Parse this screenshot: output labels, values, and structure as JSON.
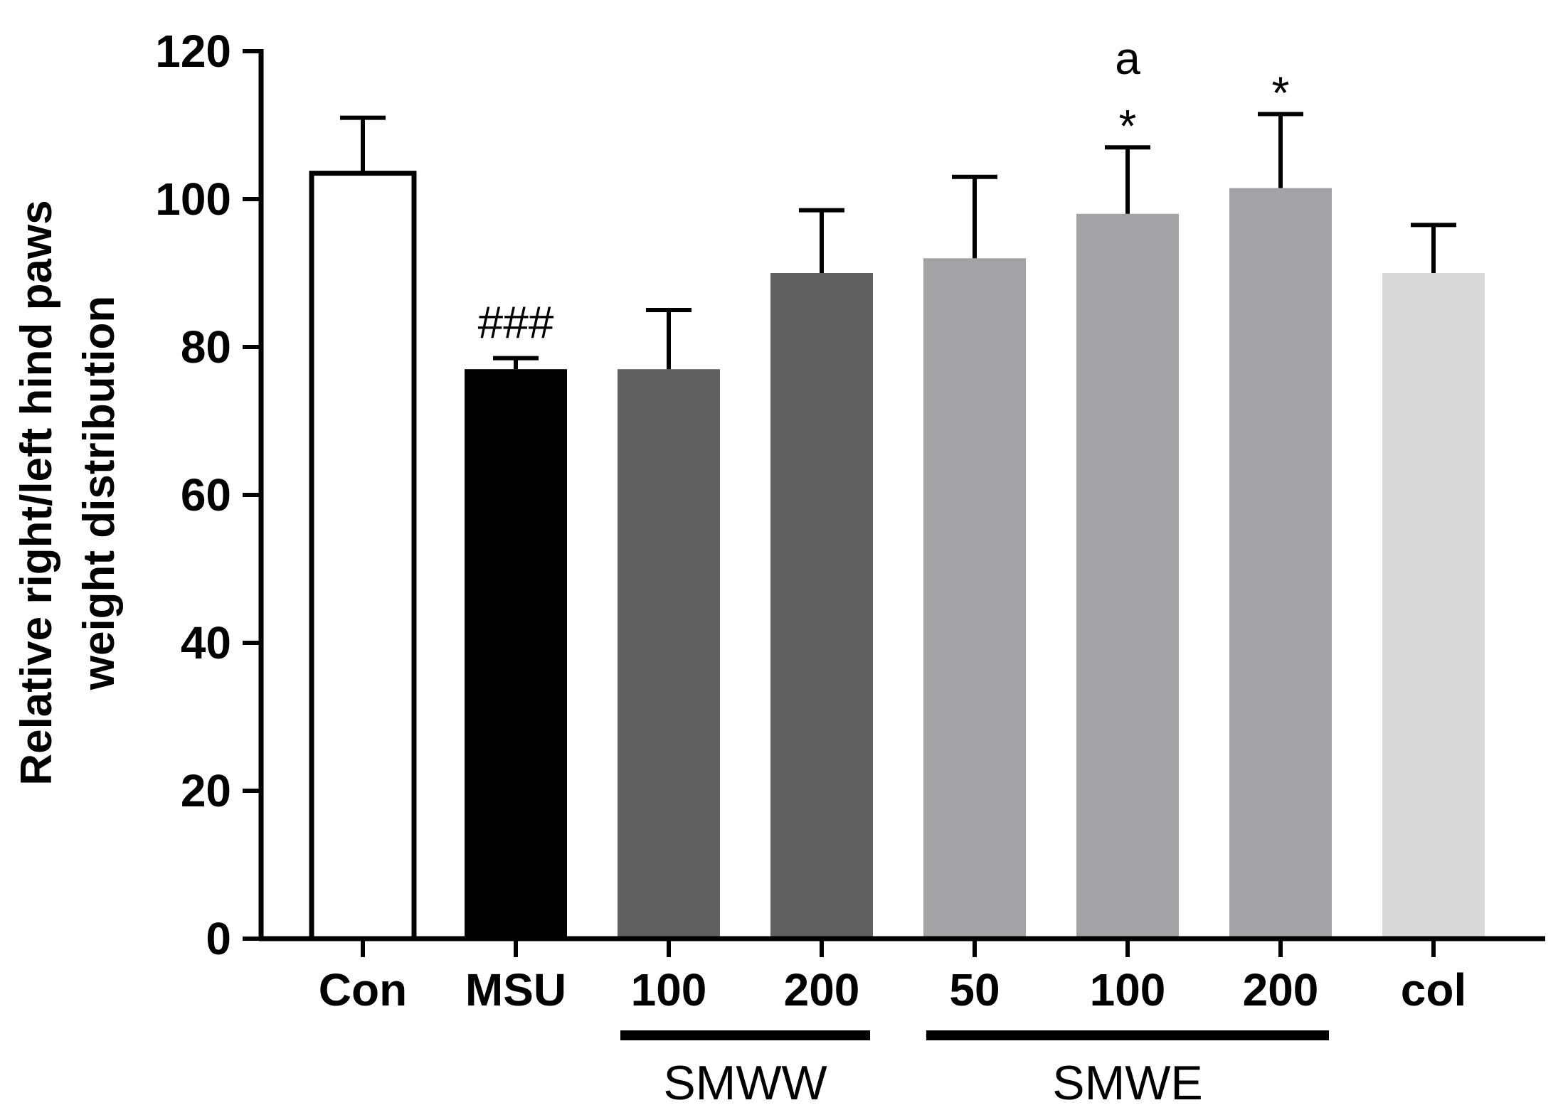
{
  "chart_data": {
    "type": "bar",
    "title": "",
    "xlabel": "",
    "ylabel_line1": "Relative right/left hind paws",
    "ylabel_line2": "weight distribution",
    "ylim": [
      0,
      120
    ],
    "yticks": [
      0,
      20,
      40,
      60,
      80,
      100,
      120
    ],
    "categories": [
      "Con",
      "MSU",
      "100",
      "200",
      "50",
      "100",
      "200",
      "col"
    ],
    "values": [
      103.5,
      77,
      77,
      90,
      92,
      98,
      101.5,
      90
    ],
    "errors": [
      7.5,
      1.5,
      8,
      8.5,
      11,
      9,
      10,
      6.5
    ],
    "colors": [
      "#ffffff",
      "#000000",
      "#606060",
      "#606060",
      "#a3a3a6",
      "#a3a3a6",
      "#a3a3a6",
      "#d9d9d9"
    ],
    "annotations": [
      {
        "bar": 1,
        "lines": [
          "###"
        ]
      },
      {
        "bar": 5,
        "lines": [
          "a",
          "*"
        ]
      },
      {
        "bar": 6,
        "lines": [
          "*"
        ]
      }
    ],
    "groups": [
      {
        "label": "SMWW",
        "from": 2,
        "to": 3
      },
      {
        "label": "SMWE",
        "from": 4,
        "to": 6
      }
    ]
  }
}
